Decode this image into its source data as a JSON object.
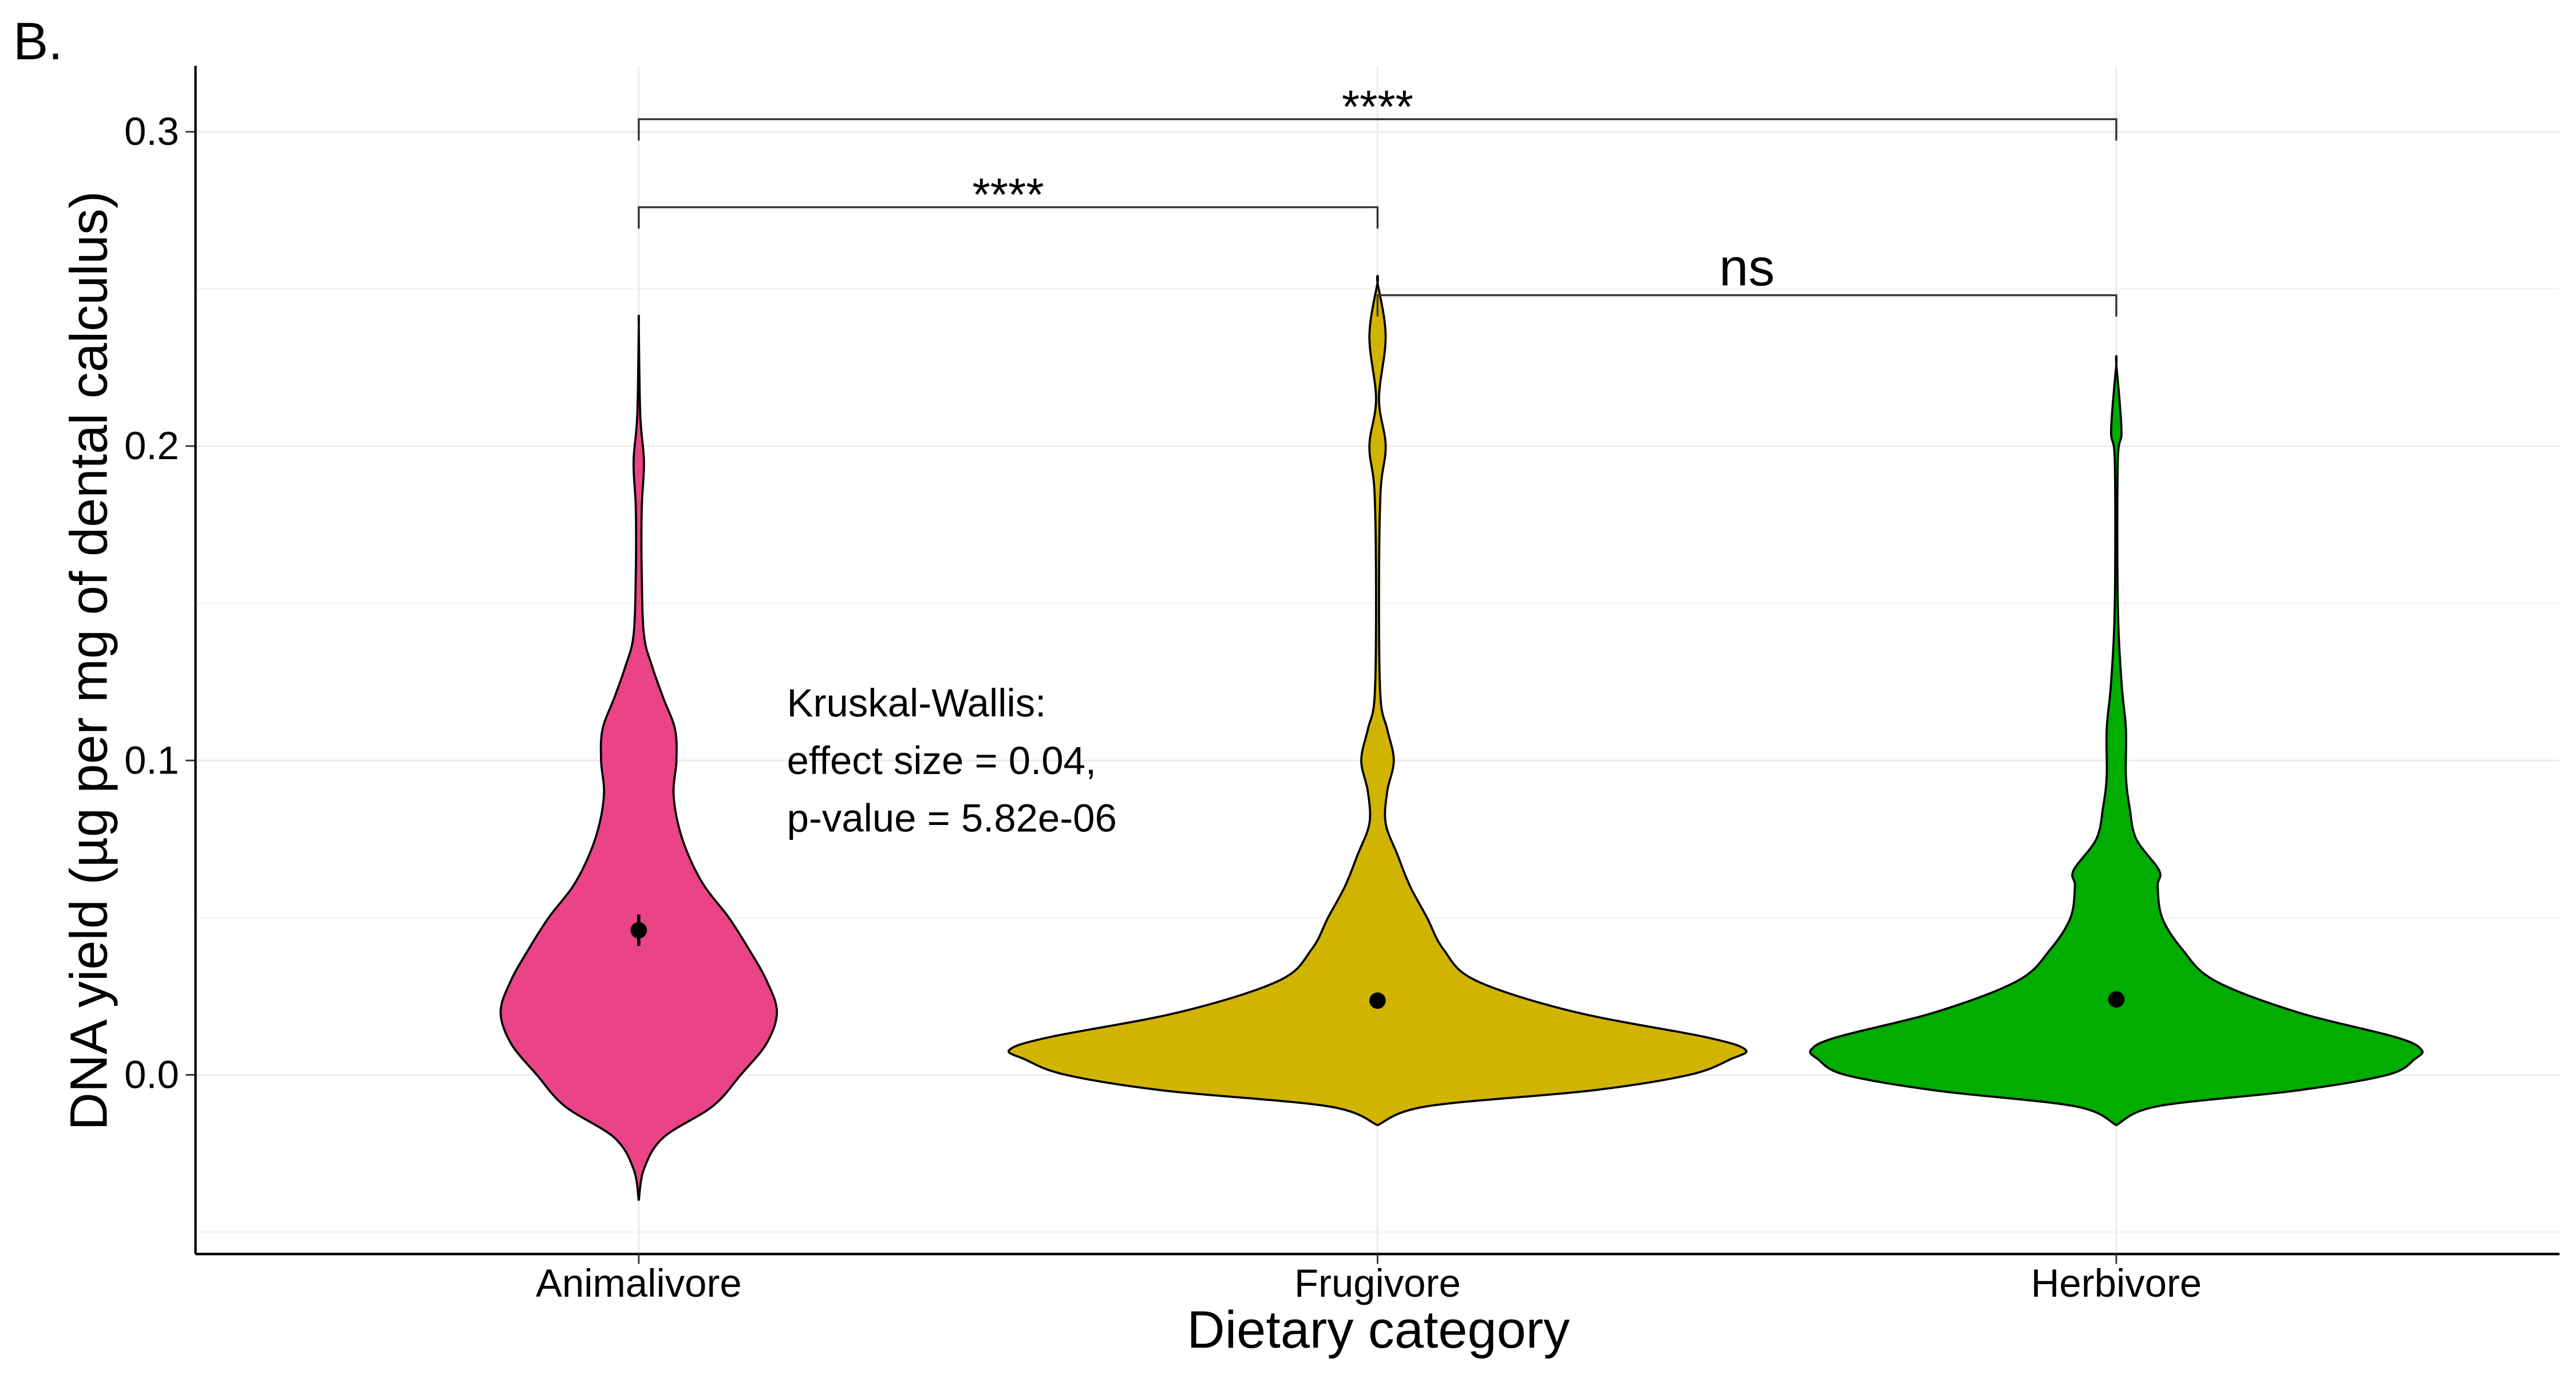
{
  "chart_data": {
    "type": "violin",
    "panel_label": "B.",
    "x_label": "Dietary category",
    "y_label": "DNA yield (µg per mg of dental calculus)",
    "categories": [
      "Animalivore",
      "Frugivore",
      "Herbivore"
    ],
    "ylim": [
      -0.057,
      0.321
    ],
    "yticks": [
      {
        "value": 0,
        "label": "0.0"
      },
      0.1,
      0.2,
      0.3
    ],
    "yminor": [
      -0.05,
      0.05,
      0.15,
      0.25
    ],
    "grid": true,
    "groups": [
      {
        "color": "#ea4487",
        "density_y": [
          -0.04,
          -0.03,
          -0.02,
          -0.01,
          0,
          0.01,
          0.02,
          0.03,
          0.04,
          0.05,
          0.06,
          0.07,
          0.08,
          0.09,
          0.1,
          0.11,
          0.12,
          0.13,
          0.14,
          0.16,
          0.18,
          0.195,
          0.21,
          0.238
        ],
        "density_width": [
          0,
          0.007,
          0.033,
          0.1,
          0.138,
          0.173,
          0.187,
          0.173,
          0.149,
          0.122,
          0.089,
          0.067,
          0.053,
          0.047,
          0.051,
          0.049,
          0.033,
          0.018,
          0.007,
          0.004,
          0.004,
          0.007,
          0.002,
          0
        ],
        "mean": 0.046,
        "error": 0.005
      },
      {
        "color": "#d1b400",
        "density_y": [
          -0.016,
          -0.01,
          -0.005,
          0,
          0.005,
          0.008,
          0.012,
          0.02,
          0.03,
          0.04,
          0.05,
          0.06,
          0.07,
          0.08,
          0.09,
          0.1,
          0.11,
          0.12,
          0.15,
          0.185,
          0.2,
          0.215,
          0.235,
          0.252
        ],
        "density_width": [
          0,
          0.067,
          0.289,
          0.422,
          0.478,
          0.498,
          0.444,
          0.267,
          0.133,
          0.089,
          0.067,
          0.044,
          0.027,
          0.011,
          0.013,
          0.022,
          0.013,
          0.004,
          0.002,
          0.004,
          0.011,
          0.002,
          0.011,
          0
        ],
        "mean": 0.0236,
        "error": 0.0015
      },
      {
        "color": "#00ad00",
        "density_y": [
          -0.016,
          -0.01,
          -0.005,
          0,
          0.005,
          0.008,
          0.012,
          0.02,
          0.03,
          0.04,
          0.05,
          0.06,
          0.065,
          0.075,
          0.085,
          0.095,
          0.11,
          0.125,
          0.15,
          0.195,
          0.205,
          0.226
        ],
        "density_width": [
          0,
          0.056,
          0.244,
          0.367,
          0.404,
          0.413,
          0.378,
          0.244,
          0.133,
          0.089,
          0.062,
          0.056,
          0.058,
          0.027,
          0.018,
          0.013,
          0.013,
          0.007,
          0.002,
          0.002,
          0.007,
          0
        ],
        "mean": 0.024,
        "error": 0.0015
      }
    ],
    "brackets": [
      {
        "from": 0,
        "to": 2,
        "y": 0.304,
        "label": "****"
      },
      {
        "from": 0,
        "to": 1,
        "y": 0.276,
        "label": "****"
      },
      {
        "from": 1,
        "to": 2,
        "y": 0.248,
        "label": "ns"
      }
    ],
    "annotation": [
      "Kruskal-Wallis:",
      "effect size = 0.04,",
      "p-value = 5.82e-06"
    ]
  }
}
